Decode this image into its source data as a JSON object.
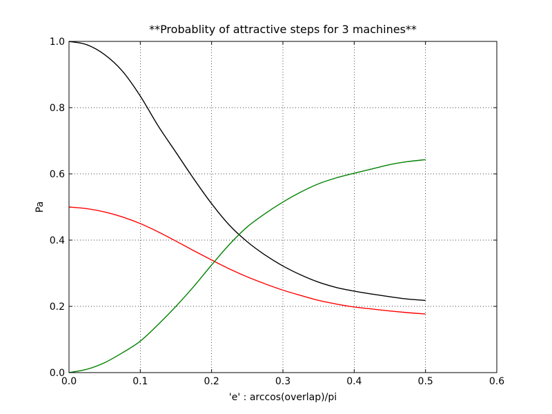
{
  "chart_data": {
    "type": "line",
    "title": "**Probablity of attractive steps for 3 machines**",
    "xlabel": "'e' : arccos(overlap)/pi",
    "ylabel": "Pa",
    "xlim": [
      0.0,
      0.6
    ],
    "ylim": [
      0.0,
      1.0
    ],
    "xticks": [
      "0.0",
      "0.1",
      "0.2",
      "0.3",
      "0.4",
      "0.5",
      "0.6"
    ],
    "yticks": [
      "0.0",
      "0.2",
      "0.4",
      "0.6",
      "0.8",
      "1.0"
    ],
    "grid": true,
    "legend": "none",
    "x": [
      0.0,
      0.025,
      0.05,
      0.075,
      0.1,
      0.125,
      0.15,
      0.175,
      0.2,
      0.225,
      0.25,
      0.275,
      0.3,
      0.325,
      0.35,
      0.375,
      0.4,
      0.425,
      0.45,
      0.475,
      0.5
    ],
    "series": [
      {
        "color": "#000000",
        "values": [
          1.0,
          0.99,
          0.96,
          0.91,
          0.835,
          0.745,
          0.665,
          0.585,
          0.51,
          0.445,
          0.395,
          0.355,
          0.322,
          0.295,
          0.273,
          0.257,
          0.246,
          0.237,
          0.229,
          0.222,
          0.218
        ]
      },
      {
        "color": "#ff0000",
        "values": [
          0.5,
          0.495,
          0.485,
          0.47,
          0.45,
          0.425,
          0.397,
          0.368,
          0.34,
          0.313,
          0.289,
          0.268,
          0.249,
          0.233,
          0.218,
          0.207,
          0.198,
          0.192,
          0.186,
          0.181,
          0.177
        ]
      },
      {
        "color": "#008000",
        "values": [
          0.0,
          0.01,
          0.03,
          0.06,
          0.095,
          0.145,
          0.2,
          0.26,
          0.325,
          0.387,
          0.44,
          0.48,
          0.515,
          0.545,
          0.57,
          0.588,
          0.602,
          0.615,
          0.628,
          0.637,
          0.643
        ]
      }
    ]
  }
}
